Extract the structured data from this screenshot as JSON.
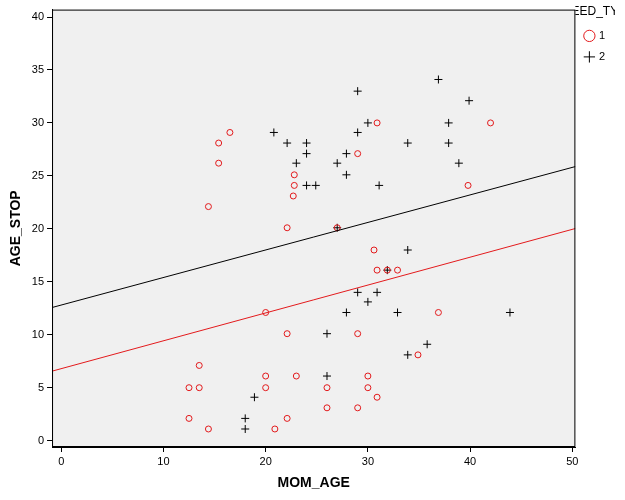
{
  "chart_data": {
    "type": "scatter",
    "x_label": "MOM_AGE",
    "y_label": "AGE_STOP",
    "legend_title": "FEED_TYP",
    "legend": "right",
    "grid": false,
    "xlim": [
      -0.9,
      50.3
    ],
    "ylim": [
      -0.6,
      40.7
    ],
    "xticks": [
      0,
      10,
      20,
      30,
      40,
      50
    ],
    "yticks": [
      0,
      5,
      10,
      15,
      20,
      25,
      30,
      35,
      40
    ],
    "series": [
      {
        "name": "1",
        "color": "#e31a1c",
        "marker": "circle",
        "x": [
          14.4,
          15.4,
          15.4,
          16.5,
          22.1,
          22.8,
          22.8,
          22.7,
          29.0,
          30.9,
          42.0,
          39.8,
          27.0,
          30.6,
          30.9,
          32.9,
          31.9,
          22.1,
          29.0,
          36.9,
          34.9,
          20.0,
          12.5,
          12.5,
          13.5,
          13.5,
          14.4,
          20.0,
          20.0,
          20.9,
          22.1,
          23.0,
          26.0,
          26.0,
          29.0,
          30.0,
          30.0,
          30.9
        ],
        "values": [
          22.1,
          28.1,
          26.2,
          29.1,
          20.1,
          25.1,
          24.1,
          23.1,
          27.1,
          30.0,
          30.0,
          24.1,
          20.1,
          18.0,
          16.1,
          16.1,
          16.1,
          10.1,
          10.1,
          12.1,
          8.1,
          12.1,
          5.0,
          2.1,
          7.1,
          5.0,
          1.1,
          6.1,
          5.0,
          1.1,
          2.1,
          6.1,
          5.0,
          3.1,
          3.1,
          6.1,
          5.0,
          4.1
        ]
      },
      {
        "name": "2",
        "color": "#000000",
        "marker": "cross",
        "x": [
          20.8,
          22.1,
          24.0,
          24.0,
          23.0,
          24.0,
          24.9,
          27.0,
          27.9,
          27.9,
          29.0,
          29.0,
          30.0,
          31.1,
          33.9,
          36.9,
          37.9,
          37.9,
          38.9,
          39.9,
          27.0,
          33.9,
          31.9,
          30.9,
          29.0,
          30.0,
          27.9,
          32.9,
          26.0,
          35.8,
          33.9,
          43.9,
          26.0,
          18.9,
          18.0,
          18.0
        ],
        "values": [
          29.1,
          28.1,
          28.1,
          27.1,
          26.2,
          24.1,
          24.1,
          26.2,
          27.1,
          25.1,
          29.1,
          33.0,
          30.0,
          24.1,
          28.1,
          34.1,
          30.0,
          28.1,
          26.2,
          32.1,
          20.1,
          18.0,
          16.1,
          14.0,
          14.0,
          13.1,
          12.1,
          12.1,
          10.1,
          9.1,
          8.1,
          12.1,
          6.1,
          4.1,
          2.1,
          1.1
        ]
      },
      {
        "type": "line",
        "color": "#000000",
        "line_style": "solid",
        "x": [
          -0.9,
          50.3
        ],
        "values": [
          12.57,
          25.88
        ]
      },
      {
        "type": "line",
        "color": "#e31a1c",
        "line_style": "solid",
        "x": [
          -0.9,
          50.3
        ],
        "values": [
          6.56,
          20.03
        ]
      }
    ]
  }
}
